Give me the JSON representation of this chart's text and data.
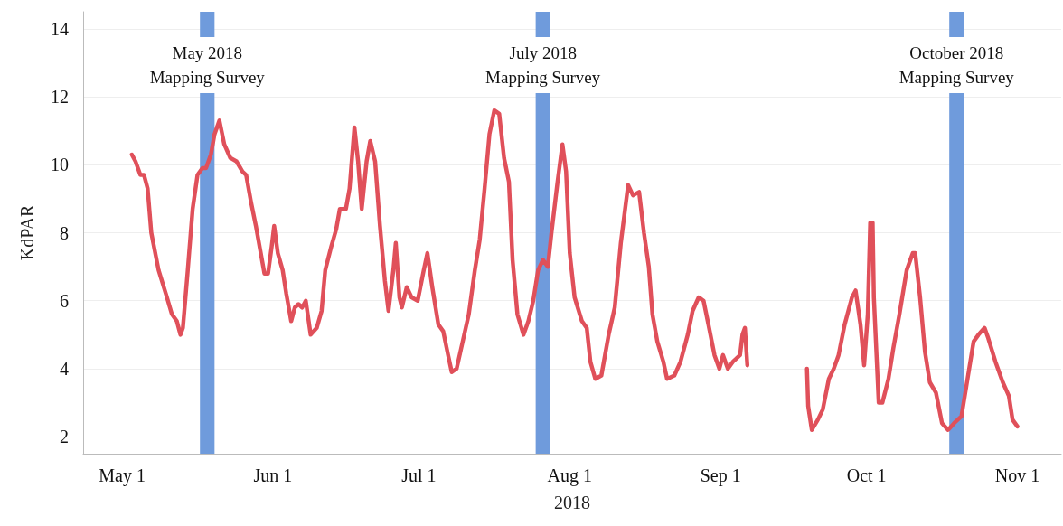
{
  "chart_data": {
    "type": "line",
    "xlabel": "2018",
    "ylabel": "KdPAR",
    "xlim": [
      "2018-04-23",
      "2018-11-10"
    ],
    "xticks": [
      {
        "value": "2018-05-01",
        "label": "May 1"
      },
      {
        "value": "2018-06-01",
        "label": "Jun 1"
      },
      {
        "value": "2018-07-01",
        "label": "Jul 1"
      },
      {
        "value": "2018-08-01",
        "label": "Aug 1"
      },
      {
        "value": "2018-09-01",
        "label": "Sep 1"
      },
      {
        "value": "2018-10-01",
        "label": "Oct 1"
      },
      {
        "value": "2018-11-01",
        "label": "Nov 1"
      }
    ],
    "ylim": [
      1.5,
      14.5
    ],
    "yticks": [
      2,
      4,
      6,
      8,
      10,
      12,
      14
    ],
    "grid": "y",
    "marker": "none",
    "line_style": "solid",
    "bands": [
      {
        "axis": "x",
        "from": "2018-05-17",
        "to": "2018-05-20",
        "label": "May 2018\nMapping Survey",
        "color": "#6f9bdc"
      },
      {
        "axis": "x",
        "from": "2018-07-25",
        "to": "2018-07-28",
        "label": "July 2018\nMapping Survey",
        "color": "#6f9bdc"
      },
      {
        "axis": "x",
        "from": "2018-10-18",
        "to": "2018-10-21",
        "label": "October 2018\nMapping Survey",
        "color": "#6f9bdc"
      }
    ],
    "x": [
      "2018-05-03",
      "2018-05-03T18:00",
      "2018-05-04T18:00",
      "2018-05-05T12:00",
      "2018-05-06T06:00",
      "2018-05-07",
      "2018-05-08T12:00",
      "2018-05-10",
      "2018-05-11T06:00",
      "2018-05-12T06:00",
      "2018-05-13",
      "2018-05-13T12:00",
      "2018-05-14T12:00",
      "2018-05-15T12:00",
      "2018-05-16T12:00",
      "2018-05-17T12:00",
      "2018-05-18T06:00",
      "2018-05-19T06:00",
      "2018-05-20",
      "2018-05-21",
      "2018-05-22",
      "2018-05-23T06:00",
      "2018-05-24T12:00",
      "2018-05-25T18:00",
      "2018-05-26T12:00",
      "2018-05-27T12:00",
      "2018-05-28T12:00",
      "2018-05-29T12:00",
      "2018-05-30T06:00",
      "2018-05-31",
      "2018-05-31T18:00",
      "2018-06-01T06:00",
      "2018-06-02",
      "2018-06-03",
      "2018-06-03T18:00",
      "2018-06-04T18:00",
      "2018-06-05T12:00",
      "2018-06-06T06:00",
      "2018-06-07",
      "2018-06-07T18:00",
      "2018-06-08T18:00",
      "2018-06-10",
      "2018-06-11",
      "2018-06-11T18:00",
      "2018-06-13",
      "2018-06-14",
      "2018-06-14T18:00",
      "2018-06-16",
      "2018-06-16T18:00",
      "2018-06-17T18:00",
      "2018-06-18T12:00",
      "2018-06-19T06:00",
      "2018-06-20T06:00",
      "2018-06-21",
      "2018-06-22",
      "2018-06-23",
      "2018-06-24",
      "2018-06-24T18:00",
      "2018-06-25T18:00",
      "2018-06-26T06:00",
      "2018-06-27",
      "2018-06-27T12:00",
      "2018-06-28T12:00",
      "2018-06-29T12:00",
      "2018-06-30T18:00",
      "2018-07-02",
      "2018-07-02T18:00",
      "2018-07-03T18:00",
      "2018-07-05",
      "2018-07-06",
      "2018-07-07",
      "2018-07-07T18:00",
      "2018-07-08T18:00",
      "2018-07-10",
      "2018-07-11T06:00",
      "2018-07-12T12:00",
      "2018-07-13T12:00",
      "2018-07-14T12:00",
      "2018-07-15T12:00",
      "2018-07-16T12:00",
      "2018-07-17T12:00",
      "2018-07-18T12:00",
      "2018-07-19T12:00",
      "2018-07-20T06:00",
      "2018-07-21T06:00",
      "2018-07-22T12:00",
      "2018-07-23T12:00",
      "2018-07-24T12:00",
      "2018-07-25T12:00",
      "2018-07-26T12:00",
      "2018-07-27T12:00",
      "2018-07-28T06:00",
      "2018-07-29T12:00",
      "2018-07-30T12:00",
      "2018-07-31T06:00",
      "2018-08-01",
      "2018-08-02",
      "2018-08-03T12:00",
      "2018-08-04T12:00",
      "2018-08-05T06:00",
      "2018-08-06T06:00",
      "2018-08-07T12:00",
      "2018-08-09",
      "2018-08-10T06:00",
      "2018-08-11T12:00",
      "2018-08-13",
      "2018-08-14",
      "2018-08-15T06:00",
      "2018-08-16T06:00",
      "2018-08-17T06:00",
      "2018-08-18",
      "2018-08-19",
      "2018-08-20T06:00",
      "2018-08-21",
      "2018-08-22T12:00",
      "2018-08-23T18:00",
      "2018-08-25T06:00",
      "2018-08-26T06:00",
      "2018-08-27T12:00",
      "2018-08-28T12:00",
      "2018-08-29T12:00",
      "2018-08-30T18:00",
      "2018-08-31T18:00",
      "2018-09-01T12:00",
      "2018-09-02T12:00",
      "2018-09-03T12:00",
      "2018-09-05",
      "2018-09-05T12:00",
      "2018-09-06",
      "2018-09-06T12:00",
      "2018-09-12",
      "2018-09-18T18:00",
      "2018-09-19",
      "2018-09-19T18:00",
      "2018-09-21",
      "2018-09-22",
      "2018-09-23T06:00",
      "2018-09-24T06:00",
      "2018-09-25T06:00",
      "2018-09-26T12:00",
      "2018-09-28",
      "2018-09-28T18:00",
      "2018-09-29T18:00",
      "2018-09-30T12:00",
      "2018-10-01T06:00",
      "2018-10-01T18:00",
      "2018-10-02T06:00",
      "2018-10-02T12:00",
      "2018-10-03T12:00",
      "2018-10-04T06:00",
      "2018-10-05T12:00",
      "2018-10-06T12:00",
      "2018-10-07T18:00",
      "2018-10-09T06:00",
      "2018-10-10T12:00",
      "2018-10-11",
      "2018-10-12",
      "2018-10-13",
      "2018-10-14",
      "2018-10-15T06:00",
      "2018-10-16T12:00",
      "2018-10-17T18:00",
      "2018-10-19",
      "2018-10-20T12:00",
      "2018-10-21T18:00",
      "2018-10-23",
      "2018-10-24",
      "2018-10-25T06:00",
      "2018-10-26",
      "2018-10-27T12:00",
      "2018-10-29",
      "2018-10-30T06:00",
      "2018-10-31",
      "2018-11-01"
    ],
    "series": [
      {
        "color": "#e0505a",
        "values": [
          10.3,
          10.1,
          9.7,
          9.7,
          9.3,
          8.0,
          6.9,
          6.2,
          5.6,
          5.4,
          5.0,
          5.2,
          6.9,
          8.7,
          9.7,
          9.9,
          9.9,
          10.3,
          10.9,
          11.3,
          10.6,
          10.2,
          10.1,
          9.8,
          9.7,
          8.9,
          8.2,
          7.4,
          6.8,
          6.8,
          7.6,
          8.2,
          7.4,
          6.9,
          6.2,
          5.4,
          5.8,
          5.9,
          5.8,
          6.0,
          5.0,
          5.2,
          5.7,
          6.9,
          7.6,
          8.1,
          8.7,
          8.7,
          9.3,
          11.1,
          10.1,
          8.7,
          10.1,
          10.7,
          10.1,
          8.2,
          6.6,
          5.7,
          6.9,
          7.7,
          6.1,
          5.8,
          6.4,
          6.1,
          6.0,
          6.9,
          7.4,
          6.4,
          5.3,
          5.1,
          4.4,
          3.9,
          4.0,
          4.8,
          5.6,
          6.9,
          7.8,
          9.3,
          10.9,
          11.6,
          11.5,
          10.2,
          9.5,
          7.2,
          5.6,
          5.0,
          5.4,
          6.0,
          6.9,
          7.2,
          7.0,
          8.0,
          9.5,
          10.6,
          9.8,
          7.4,
          6.1,
          5.4,
          5.2,
          4.2,
          3.7,
          3.8,
          5.0,
          5.8,
          7.7,
          9.4,
          9.1,
          9.2,
          8.0,
          7.0,
          5.6,
          4.8,
          4.2,
          3.7,
          3.8,
          4.2,
          5.0,
          5.7,
          6.1,
          6.0,
          5.3,
          4.4,
          4.0,
          4.4,
          4.0,
          4.2,
          4.4,
          5.0,
          5.2,
          4.1,
          null,
          4.0,
          2.9,
          2.2,
          2.5,
          2.8,
          3.7,
          4.0,
          4.4,
          5.3,
          6.1,
          6.3,
          5.3,
          4.1,
          5.6,
          8.3,
          8.3,
          6.1,
          3.0,
          3.0,
          3.7,
          4.6,
          5.6,
          6.9,
          7.4,
          7.4,
          6.1,
          4.5,
          3.6,
          3.3,
          2.4,
          2.2,
          2.4,
          2.6,
          3.7,
          4.8,
          5.0,
          5.2,
          4.9,
          4.2,
          3.6,
          3.2,
          2.5,
          2.3
        ]
      }
    ]
  }
}
